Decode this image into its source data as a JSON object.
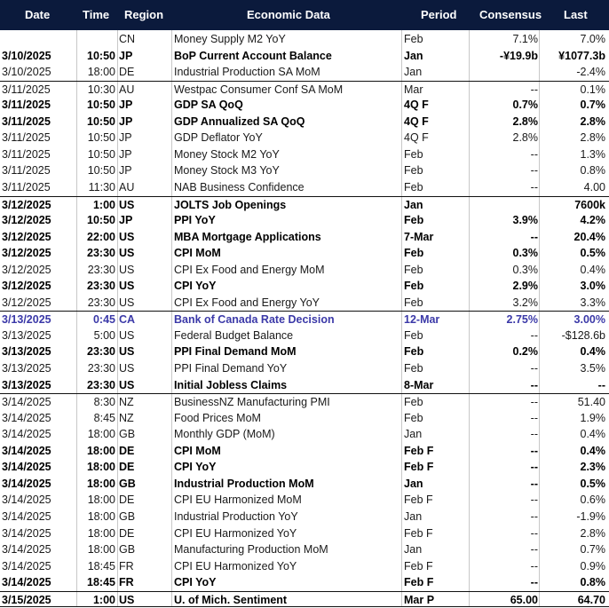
{
  "header": {
    "date": "Date",
    "time": "Time",
    "region": "Region",
    "data": "Economic Data",
    "period": "Period",
    "consensus": "Consensus",
    "last": "Last"
  },
  "rows": [
    {
      "date": "",
      "time": "",
      "region": "CN",
      "data": "Money Supply M2 YoY",
      "period": "Feb",
      "consensus": "7.1%",
      "last": "7.0%",
      "style": "normal"
    },
    {
      "date": "3/10/2025",
      "time": "10:50",
      "region": "JP",
      "data": "BoP Current Account Balance",
      "period": "Jan",
      "consensus": "-¥19.9b",
      "last": "¥1077.3b",
      "style": "bold"
    },
    {
      "date": "3/10/2025",
      "time": "18:00",
      "region": "DE",
      "data": "Industrial Production SA MoM",
      "period": "Jan",
      "consensus": "",
      "last": "-2.4%",
      "style": "normal"
    },
    {
      "date": "3/11/2025",
      "time": "10:30",
      "region": "AU",
      "data": "Westpac Consumer Conf SA MoM",
      "period": "Mar",
      "consensus": "--",
      "last": "0.1%",
      "style": "normal",
      "sepTop": true
    },
    {
      "date": "3/11/2025",
      "time": "10:50",
      "region": "JP",
      "data": "GDP SA QoQ",
      "period": "4Q F",
      "consensus": "0.7%",
      "last": "0.7%",
      "style": "bold"
    },
    {
      "date": "3/11/2025",
      "time": "10:50",
      "region": "JP",
      "data": "GDP Annualized SA QoQ",
      "period": "4Q F",
      "consensus": "2.8%",
      "last": "2.8%",
      "style": "bold"
    },
    {
      "date": "3/11/2025",
      "time": "10:50",
      "region": "JP",
      "data": "GDP Deflator YoY",
      "period": "4Q F",
      "consensus": "2.8%",
      "last": "2.8%",
      "style": "normal"
    },
    {
      "date": "3/11/2025",
      "time": "10:50",
      "region": "JP",
      "data": "Money Stock M2 YoY",
      "period": "Feb",
      "consensus": "--",
      "last": "1.3%",
      "style": "normal"
    },
    {
      "date": "3/11/2025",
      "time": "10:50",
      "region": "JP",
      "data": "Money Stock M3 YoY",
      "period": "Feb",
      "consensus": "--",
      "last": "0.8%",
      "style": "normal"
    },
    {
      "date": "3/11/2025",
      "time": "11:30",
      "region": "AU",
      "data": "NAB Business Confidence",
      "period": "Feb",
      "consensus": "--",
      "last": "4.00",
      "style": "normal"
    },
    {
      "date": "3/12/2025",
      "time": "1:00",
      "region": "US",
      "data": "JOLTS Job Openings",
      "period": "Jan",
      "consensus": "",
      "last": "7600k",
      "style": "bold",
      "sepTop": true
    },
    {
      "date": "3/12/2025",
      "time": "10:50",
      "region": "JP",
      "data": "PPI YoY",
      "period": "Feb",
      "consensus": "3.9%",
      "last": "4.2%",
      "style": "bold"
    },
    {
      "date": "3/12/2025",
      "time": "22:00",
      "region": "US",
      "data": "MBA Mortgage Applications",
      "period": "7-Mar",
      "consensus": "--",
      "last": "20.4%",
      "style": "bold"
    },
    {
      "date": "3/12/2025",
      "time": "23:30",
      "region": "US",
      "data": "CPI MoM",
      "period": "Feb",
      "consensus": "0.3%",
      "last": "0.5%",
      "style": "bold"
    },
    {
      "date": "3/12/2025",
      "time": "23:30",
      "region": "US",
      "data": "CPI Ex Food and Energy MoM",
      "period": "Feb",
      "consensus": "0.3%",
      "last": "0.4%",
      "style": "normal"
    },
    {
      "date": "3/12/2025",
      "time": "23:30",
      "region": "US",
      "data": "CPI YoY",
      "period": "Feb",
      "consensus": "2.9%",
      "last": "3.0%",
      "style": "bold"
    },
    {
      "date": "3/12/2025",
      "time": "23:30",
      "region": "US",
      "data": "CPI Ex Food and Energy YoY",
      "period": "Feb",
      "consensus": "3.2%",
      "last": "3.3%",
      "style": "normal"
    },
    {
      "date": "3/13/2025",
      "time": "0:45",
      "region": "CA",
      "data": "Bank of Canada Rate Decision",
      "period": "12-Mar",
      "consensus": "2.75%",
      "last": "3.00%",
      "style": "highlight",
      "sepTop": true
    },
    {
      "date": "3/13/2025",
      "time": "5:00",
      "region": "US",
      "data": "Federal Budget Balance",
      "period": "Feb",
      "consensus": "--",
      "last": "-$128.6b",
      "style": "normal"
    },
    {
      "date": "3/13/2025",
      "time": "23:30",
      "region": "US",
      "data": "PPI Final Demand MoM",
      "period": "Feb",
      "consensus": "0.2%",
      "last": "0.4%",
      "style": "bold"
    },
    {
      "date": "3/13/2025",
      "time": "23:30",
      "region": "US",
      "data": "PPI Final Demand YoY",
      "period": "Feb",
      "consensus": "--",
      "last": "3.5%",
      "style": "normal"
    },
    {
      "date": "3/13/2025",
      "time": "23:30",
      "region": "US",
      "data": "Initial Jobless Claims",
      "period": "8-Mar",
      "consensus": "--",
      "last": "--",
      "style": "bold"
    },
    {
      "date": "3/14/2025",
      "time": "8:30",
      "region": "NZ",
      "data": "BusinessNZ Manufacturing PMI",
      "period": "Feb",
      "consensus": "--",
      "last": "51.40",
      "style": "normal",
      "sepTop": true
    },
    {
      "date": "3/14/2025",
      "time": "8:45",
      "region": "NZ",
      "data": "Food Prices MoM",
      "period": "Feb",
      "consensus": "--",
      "last": "1.9%",
      "style": "normal"
    },
    {
      "date": "3/14/2025",
      "time": "18:00",
      "region": "GB",
      "data": "Monthly GDP (MoM)",
      "period": "Jan",
      "consensus": "--",
      "last": "0.4%",
      "style": "normal"
    },
    {
      "date": "3/14/2025",
      "time": "18:00",
      "region": "DE",
      "data": "CPI MoM",
      "period": "Feb F",
      "consensus": "--",
      "last": "0.4%",
      "style": "bold"
    },
    {
      "date": "3/14/2025",
      "time": "18:00",
      "region": "DE",
      "data": "CPI YoY",
      "period": "Feb F",
      "consensus": "--",
      "last": "2.3%",
      "style": "bold"
    },
    {
      "date": "3/14/2025",
      "time": "18:00",
      "region": "GB",
      "data": "Industrial Production MoM",
      "period": "Jan",
      "consensus": "--",
      "last": "0.5%",
      "style": "bold"
    },
    {
      "date": "3/14/2025",
      "time": "18:00",
      "region": "DE",
      "data": "CPI EU Harmonized MoM",
      "period": "Feb F",
      "consensus": "--",
      "last": "0.6%",
      "style": "normal"
    },
    {
      "date": "3/14/2025",
      "time": "18:00",
      "region": "GB",
      "data": "Industrial Production YoY",
      "period": "Jan",
      "consensus": "--",
      "last": "-1.9%",
      "style": "normal"
    },
    {
      "date": "3/14/2025",
      "time": "18:00",
      "region": "DE",
      "data": "CPI EU Harmonized YoY",
      "period": "Feb F",
      "consensus": "--",
      "last": "2.8%",
      "style": "normal"
    },
    {
      "date": "3/14/2025",
      "time": "18:00",
      "region": "GB",
      "data": "Manufacturing Production MoM",
      "period": "Jan",
      "consensus": "--",
      "last": "0.7%",
      "style": "normal"
    },
    {
      "date": "3/14/2025",
      "time": "18:45",
      "region": "FR",
      "data": "CPI EU Harmonized YoY",
      "period": "Feb F",
      "consensus": "--",
      "last": "0.9%",
      "style": "normal"
    },
    {
      "date": "3/14/2025",
      "time": "18:45",
      "region": "FR",
      "data": "CPI YoY",
      "period": "Feb F",
      "consensus": "--",
      "last": "0.8%",
      "style": "bold"
    },
    {
      "date": "3/15/2025",
      "time": "1:00",
      "region": "US",
      "data": "U. of Mich. Sentiment",
      "period": "Mar P",
      "consensus": "65.00",
      "last": "64.70",
      "style": "bold",
      "sepTop": true
    }
  ]
}
